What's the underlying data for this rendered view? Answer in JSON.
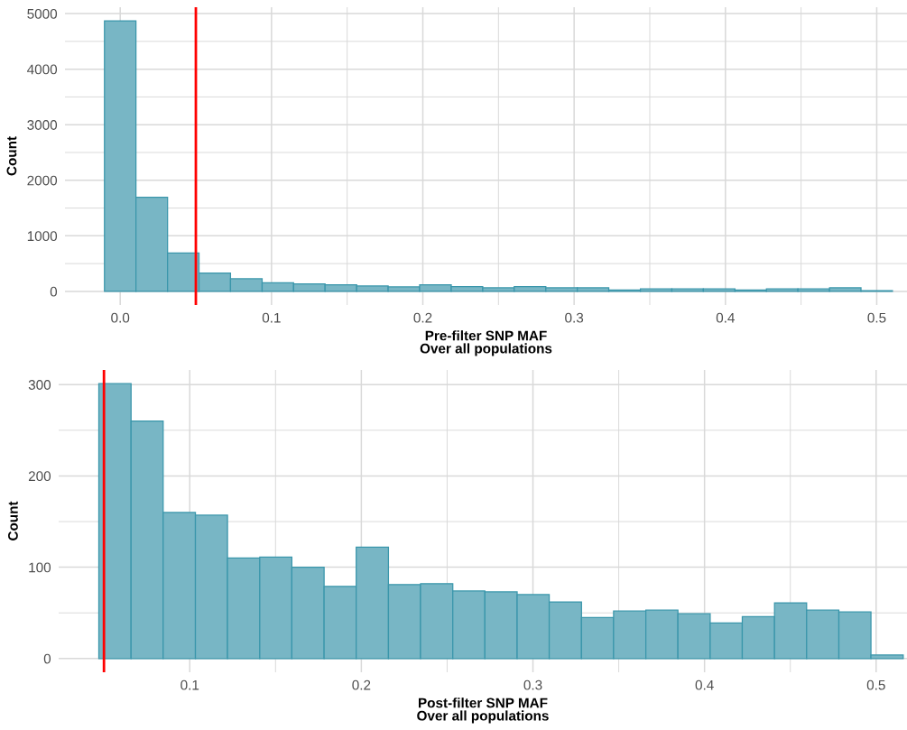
{
  "chart_data": [
    {
      "type": "histogram",
      "xlabel": "Pre-filter SNP MAF\nOver all populations",
      "ylabel": "Count",
      "color": "#78b6c5",
      "bins": [
        -0.0104,
        0.0104,
        0.0313,
        0.0521,
        0.0729,
        0.0938,
        0.1146,
        0.1354,
        0.1563,
        0.1771,
        0.1979,
        0.2188,
        0.2396,
        0.2604,
        0.2813,
        0.3021,
        0.3229,
        0.3438,
        0.3646,
        0.3854,
        0.4063,
        0.4271,
        0.4479,
        0.4688,
        0.4896,
        0.5104
      ],
      "values": [
        4870,
        1695,
        690,
        330,
        228,
        157,
        135,
        120,
        98,
        81,
        120,
        87,
        65,
        87,
        65,
        65,
        27,
        44,
        44,
        44,
        27,
        44,
        44,
        65,
        11
      ],
      "xlim": [
        -0.0365,
        0.52
      ],
      "ylim": [
        -245,
        5115
      ],
      "xticks": [
        {
          "value": 0,
          "label": "0.0"
        },
        {
          "value": 0.05,
          "label": null
        },
        0.1,
        {
          "value": 0.15,
          "label": null
        },
        0.2,
        {
          "value": 0.25,
          "label": null
        },
        0.3,
        {
          "value": 0.35,
          "label": null
        },
        0.4,
        {
          "value": 0.45,
          "label": null
        },
        0.5
      ],
      "yticks": [
        0,
        {
          "value": 500,
          "label": null
        },
        1000,
        {
          "value": 1500,
          "label": null
        },
        2000,
        {
          "value": 2500,
          "label": null
        },
        3000,
        {
          "value": 3500,
          "label": null
        },
        4000,
        {
          "value": 4500,
          "label": null
        },
        5000
      ],
      "ref_lines": [
        {
          "axis": "x",
          "value": 0.05,
          "color": "#ff0000"
        }
      ],
      "grid": true
    },
    {
      "type": "histogram",
      "xlabel": "Post-filter SNP MAF\nOver all populations",
      "ylabel": "Count",
      "color": "#78b6c5",
      "bins": [
        0.047,
        0.0658,
        0.0845,
        0.1033,
        0.122,
        0.1408,
        0.1595,
        0.1783,
        0.197,
        0.2158,
        0.2345,
        0.2533,
        0.272,
        0.2908,
        0.3095,
        0.3283,
        0.347,
        0.3658,
        0.3845,
        0.4033,
        0.422,
        0.4408,
        0.4595,
        0.4783,
        0.497,
        0.5158
      ],
      "values": [
        301,
        260,
        160,
        157,
        110,
        111,
        100,
        79,
        122,
        81,
        82,
        74,
        73,
        70,
        62,
        45,
        52,
        53,
        49,
        39,
        46,
        61,
        53,
        51,
        4
      ],
      "xlim": [
        0.0236,
        0.518
      ],
      "ylim": [
        -15,
        316
      ],
      "xticks": [
        {
          "value": 0.05,
          "label": null
        },
        0.1,
        {
          "value": 0.15,
          "label": null
        },
        0.2,
        {
          "value": 0.25,
          "label": null
        },
        0.3,
        {
          "value": 0.35,
          "label": null
        },
        0.4,
        {
          "value": 0.45,
          "label": null
        },
        0.5
      ],
      "yticks": [
        0,
        {
          "value": 50,
          "label": null
        },
        100,
        {
          "value": 150,
          "label": null
        },
        200,
        {
          "value": 250,
          "label": null
        },
        300
      ],
      "ref_lines": [
        {
          "axis": "x",
          "value": 0.05,
          "color": "#ff0000"
        }
      ],
      "grid": true
    }
  ]
}
